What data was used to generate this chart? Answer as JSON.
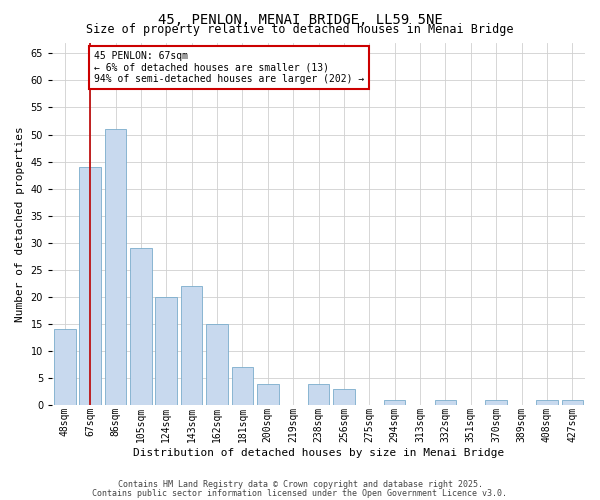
{
  "title": "45, PENLON, MENAI BRIDGE, LL59 5NE",
  "subtitle": "Size of property relative to detached houses in Menai Bridge",
  "xlabel": "Distribution of detached houses by size in Menai Bridge",
  "ylabel": "Number of detached properties",
  "categories": [
    "48sqm",
    "67sqm",
    "86sqm",
    "105sqm",
    "124sqm",
    "143sqm",
    "162sqm",
    "181sqm",
    "200sqm",
    "219sqm",
    "238sqm",
    "256sqm",
    "275sqm",
    "294sqm",
    "313sqm",
    "332sqm",
    "351sqm",
    "370sqm",
    "389sqm",
    "408sqm",
    "427sqm"
  ],
  "values": [
    14,
    44,
    51,
    29,
    20,
    22,
    15,
    7,
    4,
    0,
    4,
    3,
    0,
    1,
    0,
    1,
    0,
    1,
    0,
    1,
    1
  ],
  "bar_color": "#c8d9ee",
  "bar_edge_color": "#7aaccc",
  "marker_line_color": "#bb0000",
  "marker_index": 1,
  "annotation_text": "45 PENLON: 67sqm\n← 6% of detached houses are smaller (13)\n94% of semi-detached houses are larger (202) →",
  "annotation_box_color": "#ffffff",
  "annotation_box_edge": "#cc0000",
  "ylim": [
    0,
    67
  ],
  "yticks": [
    0,
    5,
    10,
    15,
    20,
    25,
    30,
    35,
    40,
    45,
    50,
    55,
    60,
    65
  ],
  "footer1": "Contains HM Land Registry data © Crown copyright and database right 2025.",
  "footer2": "Contains public sector information licensed under the Open Government Licence v3.0.",
  "background_color": "#ffffff",
  "grid_color": "#d0d0d0",
  "title_fontsize": 10,
  "subtitle_fontsize": 8.5,
  "xlabel_fontsize": 8,
  "ylabel_fontsize": 8,
  "tick_fontsize": 7,
  "footer_fontsize": 6,
  "annotation_fontsize": 7
}
